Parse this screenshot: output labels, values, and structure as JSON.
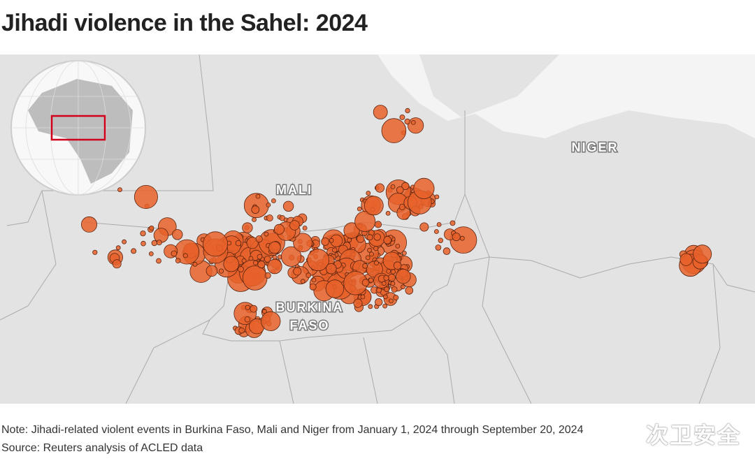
{
  "header": {
    "title": "Jihadi violence in the Sahel: 2024"
  },
  "map": {
    "labels": {
      "mali": "MALI",
      "niger": "NIGER",
      "burkina_faso": [
        "BURKINA",
        "FASO"
      ]
    }
  },
  "footer": {
    "note": "Note: Jihadi-related violent events in Burkina Faso, Mali and Niger from January 1, 2024 through September 20, 2024",
    "source": "Source: Reuters analysis of ACLED data"
  },
  "watermark": "次卫安全"
}
